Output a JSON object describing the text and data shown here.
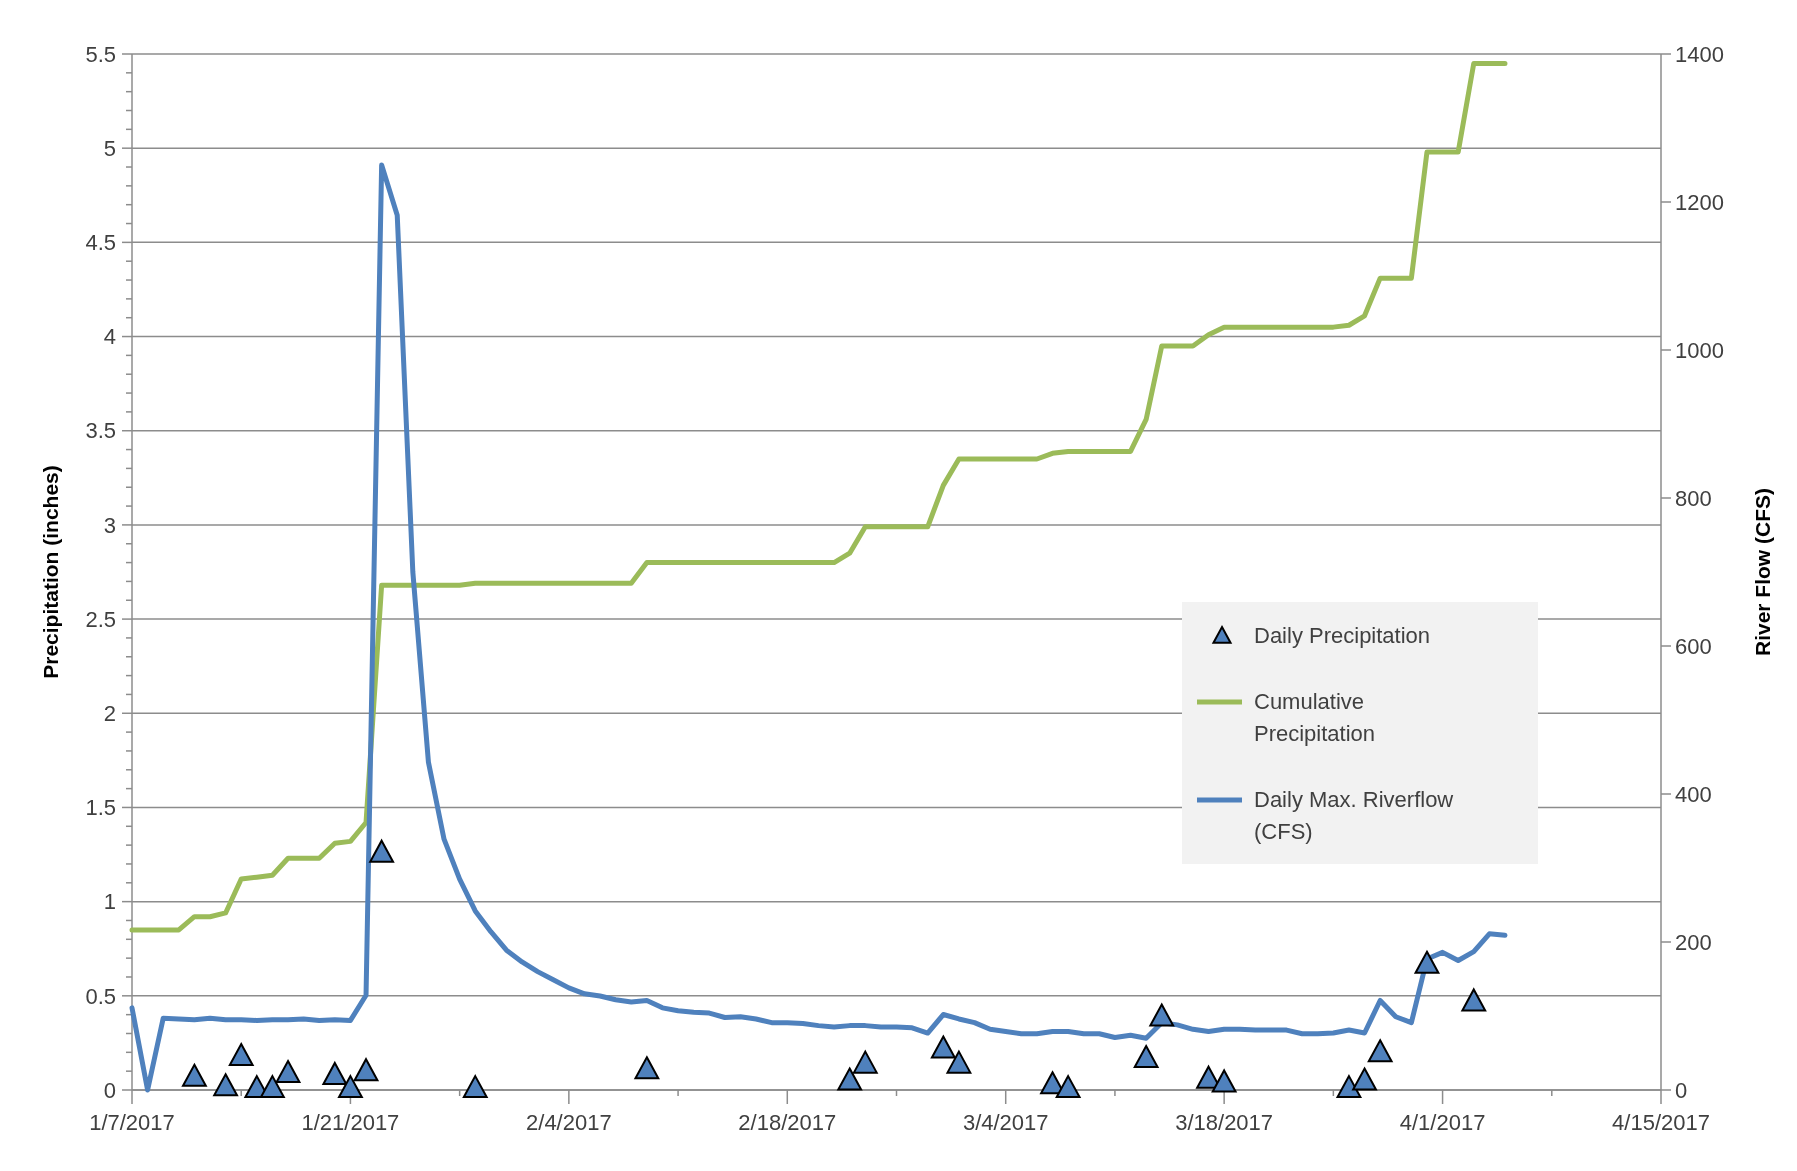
{
  "chart_data": {
    "type": "line",
    "ylabel": "Precipitation (inches)",
    "y2label": "River Flow (CFS)",
    "x": [
      "2017-01-07",
      "2017-01-08",
      "2017-01-09",
      "2017-01-10",
      "2017-01-11",
      "2017-01-12",
      "2017-01-13",
      "2017-01-14",
      "2017-01-15",
      "2017-01-16",
      "2017-01-17",
      "2017-01-18",
      "2017-01-19",
      "2017-01-20",
      "2017-01-21",
      "2017-01-22",
      "2017-01-23",
      "2017-01-24",
      "2017-01-25",
      "2017-01-26",
      "2017-01-27",
      "2017-01-28",
      "2017-01-29",
      "2017-01-30",
      "2017-01-31",
      "2017-02-01",
      "2017-02-02",
      "2017-02-03",
      "2017-02-04",
      "2017-02-05",
      "2017-02-06",
      "2017-02-07",
      "2017-02-08",
      "2017-02-09",
      "2017-02-10",
      "2017-02-11",
      "2017-02-12",
      "2017-02-13",
      "2017-02-14",
      "2017-02-15",
      "2017-02-16",
      "2017-02-17",
      "2017-02-18",
      "2017-02-19",
      "2017-02-20",
      "2017-02-21",
      "2017-02-22",
      "2017-02-23",
      "2017-02-24",
      "2017-02-25",
      "2017-02-26",
      "2017-02-27",
      "2017-02-28",
      "2017-03-01",
      "2017-03-02",
      "2017-03-03",
      "2017-03-04",
      "2017-03-05",
      "2017-03-06",
      "2017-03-07",
      "2017-03-08",
      "2017-03-09",
      "2017-03-10",
      "2017-03-11",
      "2017-03-12",
      "2017-03-13",
      "2017-03-14",
      "2017-03-15",
      "2017-03-16",
      "2017-03-17",
      "2017-03-18",
      "2017-03-19",
      "2017-03-20",
      "2017-03-21",
      "2017-03-22",
      "2017-03-23",
      "2017-03-24",
      "2017-03-25",
      "2017-03-26",
      "2017-03-27",
      "2017-03-28",
      "2017-03-29",
      "2017-03-30",
      "2017-03-31",
      "2017-04-01",
      "2017-04-02",
      "2017-04-03",
      "2017-04-04",
      "2017-04-05"
    ],
    "series": [
      {
        "name": "Daily Precipitation",
        "type": "scatter",
        "marker": "triangle",
        "color": "#4f81bd",
        "x": [
          "2017-01-11",
          "2017-01-13",
          "2017-01-14",
          "2017-01-15",
          "2017-01-16",
          "2017-01-17",
          "2017-01-20",
          "2017-01-21",
          "2017-01-22",
          "2017-01-23",
          "2017-01-29",
          "2017-02-09",
          "2017-02-22",
          "2017-02-23",
          "2017-02-28",
          "2017-03-01",
          "2017-03-07",
          "2017-03-08",
          "2017-03-13",
          "2017-03-14",
          "2017-03-17",
          "2017-03-18",
          "2017-03-26",
          "2017-03-27",
          "2017-03-28",
          "2017-03-31",
          "2017-04-03"
        ],
        "values": [
          0.07,
          0.02,
          0.18,
          0.01,
          0.01,
          0.09,
          0.08,
          0.01,
          0.1,
          1.26,
          0.01,
          0.11,
          0.05,
          0.14,
          0.22,
          0.14,
          0.03,
          0.01,
          0.17,
          0.39,
          0.06,
          0.04,
          0.01,
          0.05,
          0.2,
          0.67,
          0.47
        ]
      },
      {
        "name": "Cumulative Precipitation",
        "type": "line",
        "color": "#9bbb59",
        "values": [
          0.85,
          0.85,
          0.85,
          0.85,
          0.92,
          0.92,
          0.94,
          1.12,
          1.13,
          1.14,
          1.23,
          1.23,
          1.23,
          1.31,
          1.32,
          1.42,
          2.68,
          2.68,
          2.68,
          2.68,
          2.68,
          2.68,
          2.69,
          2.69,
          2.69,
          2.69,
          2.69,
          2.69,
          2.69,
          2.69,
          2.69,
          2.69,
          2.69,
          2.8,
          2.8,
          2.8,
          2.8,
          2.8,
          2.8,
          2.8,
          2.8,
          2.8,
          2.8,
          2.8,
          2.8,
          2.8,
          2.85,
          2.99,
          2.99,
          2.99,
          2.99,
          2.99,
          3.21,
          3.35,
          3.35,
          3.35,
          3.35,
          3.35,
          3.35,
          3.38,
          3.39,
          3.39,
          3.39,
          3.39,
          3.39,
          3.56,
          3.95,
          3.95,
          3.95,
          4.01,
          4.05,
          4.05,
          4.05,
          4.05,
          4.05,
          4.05,
          4.05,
          4.05,
          4.06,
          4.11,
          4.31,
          4.31,
          4.31,
          4.98,
          4.98,
          4.98,
          5.45,
          5.45,
          5.45
        ]
      },
      {
        "name": "Daily Max. Riverflow (CFS)",
        "type": "line",
        "axis": "y2",
        "color": "#4f81bd",
        "values": [
          111,
          0,
          97,
          96,
          95,
          97,
          95,
          95,
          94,
          95,
          95,
          96,
          94,
          95,
          94,
          128,
          1250,
          1182,
          700,
          443,
          339,
          285,
          242,
          214,
          189,
          173,
          160,
          149,
          138,
          130,
          127,
          122,
          119,
          121,
          111,
          107,
          105,
          104,
          98,
          99,
          96,
          91,
          91,
          90,
          87,
          85,
          87,
          87,
          85,
          85,
          84,
          77,
          102,
          96,
          91,
          82,
          79,
          76,
          76,
          79,
          79,
          76,
          76,
          71,
          74,
          70,
          91,
          88,
          82,
          79,
          82,
          82,
          81,
          81,
          81,
          76,
          76,
          77,
          81,
          77,
          121,
          99,
          91,
          177,
          186,
          175,
          187,
          211,
          209
        ]
      }
    ],
    "xlim": [
      "2017-01-07",
      "2017-04-15"
    ],
    "xticks": [
      {
        "value": "2017-01-07",
        "label": "1/7/2017"
      },
      {
        "value": "2017-01-14",
        "label": null
      },
      {
        "value": "2017-01-21",
        "label": "1/21/2017"
      },
      {
        "value": "2017-01-28",
        "label": null
      },
      {
        "value": "2017-02-04",
        "label": "2/4/2017"
      },
      {
        "value": "2017-02-11",
        "label": null
      },
      {
        "value": "2017-02-18",
        "label": "2/18/2017"
      },
      {
        "value": "2017-02-25",
        "label": null
      },
      {
        "value": "2017-03-04",
        "label": "3/4/2017"
      },
      {
        "value": "2017-03-11",
        "label": null
      },
      {
        "value": "2017-03-18",
        "label": "3/18/2017"
      },
      {
        "value": "2017-03-25",
        "label": null
      },
      {
        "value": "2017-04-01",
        "label": "4/1/2017"
      },
      {
        "value": "2017-04-08",
        "label": null
      },
      {
        "value": "2017-04-15",
        "label": "4/15/2017"
      }
    ],
    "ylim": [
      0,
      5.5
    ],
    "yticks": [
      0,
      {
        "value": 0.1,
        "label": null
      },
      {
        "value": 0.2,
        "label": null
      },
      {
        "value": 0.3,
        "label": null
      },
      {
        "value": 0.4,
        "label": null
      },
      0.5,
      {
        "value": 0.6,
        "label": null
      },
      {
        "value": 0.7,
        "label": null
      },
      {
        "value": 0.8,
        "label": null
      },
      {
        "value": 0.9,
        "label": null
      },
      1,
      {
        "value": 1.1,
        "label": null
      },
      {
        "value": 1.2,
        "label": null
      },
      {
        "value": 1.3,
        "label": null
      },
      {
        "value": 1.4,
        "label": null
      },
      1.5,
      {
        "value": 1.6,
        "label": null
      },
      {
        "value": 1.7,
        "label": null
      },
      {
        "value": 1.8,
        "label": null
      },
      {
        "value": 1.9,
        "label": null
      },
      2,
      {
        "value": 2.1,
        "label": null
      },
      {
        "value": 2.2,
        "label": null
      },
      {
        "value": 2.3,
        "label": null
      },
      {
        "value": 2.4,
        "label": null
      },
      2.5,
      {
        "value": 2.6,
        "label": null
      },
      {
        "value": 2.7,
        "label": null
      },
      {
        "value": 2.8,
        "label": null
      },
      {
        "value": 2.9,
        "label": null
      },
      3,
      {
        "value": 3.1,
        "label": null
      },
      {
        "value": 3.2,
        "label": null
      },
      {
        "value": 3.3,
        "label": null
      },
      {
        "value": 3.4,
        "label": null
      },
      3.5,
      {
        "value": 3.6,
        "label": null
      },
      {
        "value": 3.7,
        "label": null
      },
      {
        "value": 3.8,
        "label": null
      },
      {
        "value": 3.9,
        "label": null
      },
      4,
      {
        "value": 4.1,
        "label": null
      },
      {
        "value": 4.2,
        "label": null
      },
      {
        "value": 4.3,
        "label": null
      },
      {
        "value": 4.4,
        "label": null
      },
      4.5,
      {
        "value": 4.6,
        "label": null
      },
      {
        "value": 4.7,
        "label": null
      },
      {
        "value": 4.8,
        "label": null
      },
      {
        "value": 4.9,
        "label": null
      },
      5,
      {
        "value": 5.1,
        "label": null
      },
      {
        "value": 5.2,
        "label": null
      },
      {
        "value": 5.3,
        "label": null
      },
      {
        "value": 5.4,
        "label": null
      },
      5.5
    ],
    "y2lim": [
      0,
      1400
    ],
    "y2ticks": [
      0,
      200,
      400,
      600,
      800,
      1000,
      1200,
      1400
    ],
    "grid": "y",
    "legend": "right",
    "line_style": "solid"
  }
}
